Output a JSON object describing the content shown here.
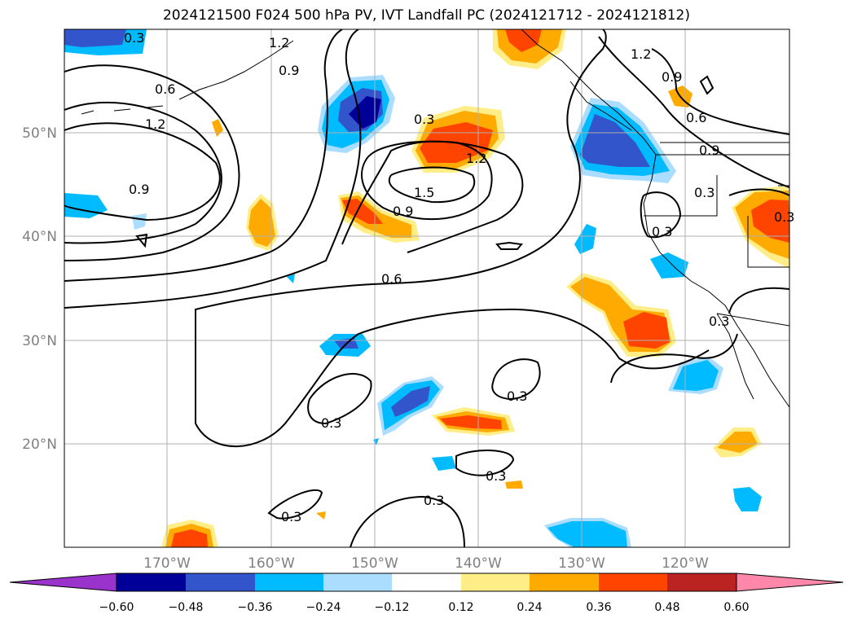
{
  "title": "2024121500 F024 500 hPa PV, IVT Landfall PC (2024121712 - 2024121812)",
  "lat_labels": [
    "50°N",
    "40°N",
    "30°N",
    "20°N"
  ],
  "lon_labels": [
    "170°W",
    "160°W",
    "150°W",
    "140°W",
    "130°W",
    "120°W"
  ],
  "colorbar": {
    "ticks": [
      "−0.60",
      "−0.48",
      "−0.36",
      "−0.24",
      "−0.12",
      "0.12",
      "0.24",
      "0.36",
      "0.48",
      "0.60"
    ],
    "colors": [
      "#9933cc",
      "#000099",
      "#3355cc",
      "#00bbff",
      "#aaddff",
      "#ffffff",
      "#ffee88",
      "#ffaa00",
      "#ff4400",
      "#bb2222",
      "#ff88aa"
    ]
  },
  "contour_labels": [
    "0.3",
    "1.2",
    "0.9",
    "0.6",
    "1.2",
    "0.9",
    "0.3",
    "1.2",
    "1.5",
    "0.9",
    "0.6",
    "1.2",
    "0.9",
    "0.6",
    "0.9",
    "0.3",
    "0.3",
    "0.3",
    "0.3",
    "0.3",
    "0.3",
    "0.3",
    "0.3",
    "0.3"
  ],
  "colors": {
    "grid": "#b0b0b0",
    "axis_label": "#808080",
    "contour": "#000000"
  }
}
